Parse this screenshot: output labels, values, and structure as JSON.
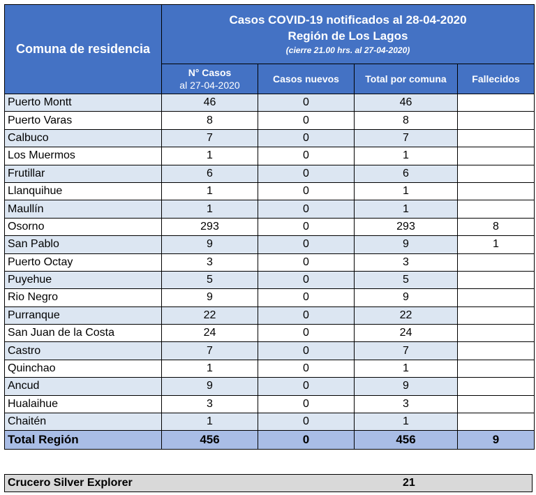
{
  "header": {
    "title_line1": "Casos COVID-19 notificados al 28-04-2020",
    "title_line2": "Región de Los Lagos",
    "title_line3": "(cierre 21.00 hrs. al 27-04-2020)",
    "comuna_label": "Comuna de residencia",
    "col_casos_1": "N° Casos",
    "col_casos_2": "al 27-04-2020",
    "col_nuevos": "Casos nuevos",
    "col_total": "Total por comuna",
    "col_fallecidos": "Fallecidos"
  },
  "rows": [
    {
      "comuna": "Puerto Montt",
      "casos": "46",
      "nuevos": "0",
      "total": "46",
      "fallecidos": ""
    },
    {
      "comuna": "Puerto Varas",
      "casos": "8",
      "nuevos": "0",
      "total": "8",
      "fallecidos": ""
    },
    {
      "comuna": "Calbuco",
      "casos": "7",
      "nuevos": "0",
      "total": "7",
      "fallecidos": ""
    },
    {
      "comuna": "Los Muermos",
      "casos": "1",
      "nuevos": "0",
      "total": "1",
      "fallecidos": ""
    },
    {
      "comuna": "Frutillar",
      "casos": "6",
      "nuevos": "0",
      "total": "6",
      "fallecidos": ""
    },
    {
      "comuna": "Llanquihue",
      "casos": "1",
      "nuevos": "0",
      "total": "1",
      "fallecidos": ""
    },
    {
      "comuna": "Maullín",
      "casos": "1",
      "nuevos": "0",
      "total": "1",
      "fallecidos": ""
    },
    {
      "comuna": "Osorno",
      "casos": "293",
      "nuevos": "0",
      "total": "293",
      "fallecidos": "8"
    },
    {
      "comuna": "San Pablo",
      "casos": "9",
      "nuevos": "0",
      "total": "9",
      "fallecidos": "1"
    },
    {
      "comuna": "Puerto Octay",
      "casos": "3",
      "nuevos": "0",
      "total": "3",
      "fallecidos": ""
    },
    {
      "comuna": "Puyehue",
      "casos": "5",
      "nuevos": "0",
      "total": "5",
      "fallecidos": ""
    },
    {
      "comuna": "Rio Negro",
      "casos": "9",
      "nuevos": "0",
      "total": "9",
      "fallecidos": ""
    },
    {
      "comuna": "Purranque",
      "casos": "22",
      "nuevos": "0",
      "total": "22",
      "fallecidos": ""
    },
    {
      "comuna": "San Juan de la Costa",
      "casos": "24",
      "nuevos": "0",
      "total": "24",
      "fallecidos": ""
    },
    {
      "comuna": "Castro",
      "casos": "7",
      "nuevos": "0",
      "total": "7",
      "fallecidos": ""
    },
    {
      "comuna": "Quinchao",
      "casos": "1",
      "nuevos": "0",
      "total": "1",
      "fallecidos": ""
    },
    {
      "comuna": "Ancud",
      "casos": "9",
      "nuevos": "0",
      "total": "9",
      "fallecidos": ""
    },
    {
      "comuna": "Hualaihue",
      "casos": "3",
      "nuevos": "0",
      "total": "3",
      "fallecidos": ""
    },
    {
      "comuna": "Chaitén",
      "casos": "1",
      "nuevos": "0",
      "total": "1",
      "fallecidos": ""
    }
  ],
  "total": {
    "label": "Total Región",
    "casos": "456",
    "nuevos": "0",
    "total": "456",
    "fallecidos": "9"
  },
  "cruise": {
    "label": "Crucero Silver Explorer",
    "value": "21"
  },
  "colors": {
    "header_blue": "#4472c4",
    "row_band": "#dce6f2",
    "total_row": "#a9bde6",
    "cruise_row": "#d9d9d9"
  }
}
